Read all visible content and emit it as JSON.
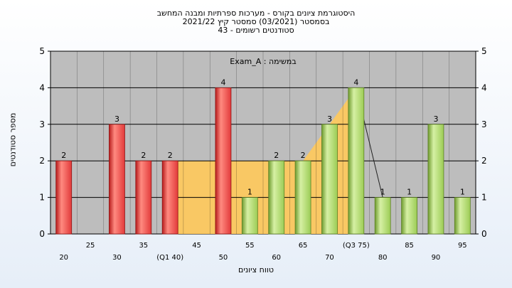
{
  "header": {
    "line1": "היסטוגרמת ציונים בקורס - מערכות ספרתיות ומבנה המחשב",
    "line2": "בסמסטר  (03/2021)  סמסטר קיץ  2021/22",
    "line3": "סטודנטים רשומים - 43"
  },
  "chart_data": {
    "type": "bar",
    "annotation": "במשימה : Exam_A",
    "xlabel": "טווח ציונים",
    "ylabel": "מספר סטודנטים",
    "ylim": [
      0,
      5
    ],
    "yticks": [
      0,
      1,
      2,
      3,
      4,
      5
    ],
    "grid": true,
    "x_tick_labels": [
      "20",
      "25",
      "30",
      "35",
      "(Q1 40)",
      "45",
      "50",
      "55",
      "60",
      "65",
      "70",
      "(Q3 75)",
      "80",
      "85",
      "90",
      "95"
    ],
    "categories": [
      20,
      25,
      30,
      35,
      40,
      45,
      50,
      55,
      60,
      65,
      70,
      75,
      80,
      85,
      90,
      95
    ],
    "values": [
      2,
      0,
      3,
      2,
      2,
      0,
      4,
      1,
      2,
      2,
      3,
      4,
      1,
      1,
      3,
      1
    ],
    "bar_colors": [
      "#e23a3a",
      "#e23a3a",
      "#e23a3a",
      "#e23a3a",
      "#e23a3a",
      "#e23a3a",
      "#e23a3a",
      "#9ccc55",
      "#9ccc55",
      "#9ccc55",
      "#9ccc55",
      "#9ccc55",
      "#9ccc55",
      "#9ccc55",
      "#9ccc55",
      "#9ccc55"
    ],
    "iqr_band": {
      "from": 40,
      "to": 75,
      "color": "#ffc95a"
    },
    "colors": {
      "plot_bg": "#bdbdbd",
      "grid": "#000000"
    }
  }
}
